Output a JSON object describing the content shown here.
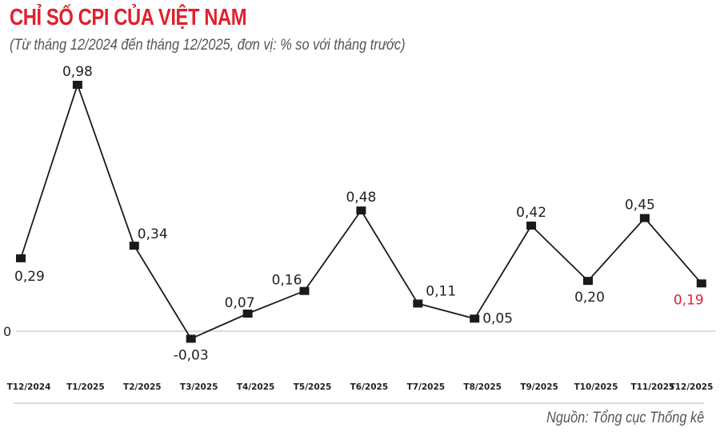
{
  "header": {
    "title": "CHỈ SỐ CPI CỦA VIỆT NAM",
    "subtitle": "(Từ tháng 12/2024 đến tháng 12/2025, đơn vị: % so với tháng trước)"
  },
  "footer": {
    "source": "Nguồn: Tổng cục Thống kê"
  },
  "colors": {
    "title": "#e0202d",
    "line": "#1a1a1a",
    "highlight_label": "#e0202d",
    "gridline": "#d0d0d0"
  },
  "chart_data": {
    "type": "line",
    "title": "CHỈ SỐ CPI CỦA VIỆT NAM",
    "subtitle": "(Từ tháng 12/2024 đến tháng 12/2025, đơn vị: % so với tháng trước)",
    "xlabel": "",
    "ylabel": "% so với tháng trước",
    "categories": [
      "T12/2024",
      "T1/2025",
      "T2/2025",
      "T3/2025",
      "T4/2025",
      "T5/2025",
      "T6/2025",
      "T7/2025",
      "T8/2025",
      "T9/2025",
      "T10/2025",
      "T11/2025",
      "T12/2025"
    ],
    "values": [
      0.29,
      0.98,
      0.34,
      -0.03,
      0.07,
      0.16,
      0.48,
      0.11,
      0.05,
      0.42,
      0.2,
      0.45,
      0.19
    ],
    "value_labels": [
      "0,29",
      "0,98",
      "0,34",
      "-0,03",
      "0,07",
      "0,16",
      "0,48",
      "0,11",
      "0,05",
      "0,42",
      "0,20",
      "0,45",
      "0,19"
    ],
    "highlighted_point": "T12/2025",
    "y_reference_label": "0",
    "grid": false,
    "legend": null,
    "marker": "square",
    "source": "Nguồn: Tổng cục Thống kê"
  }
}
